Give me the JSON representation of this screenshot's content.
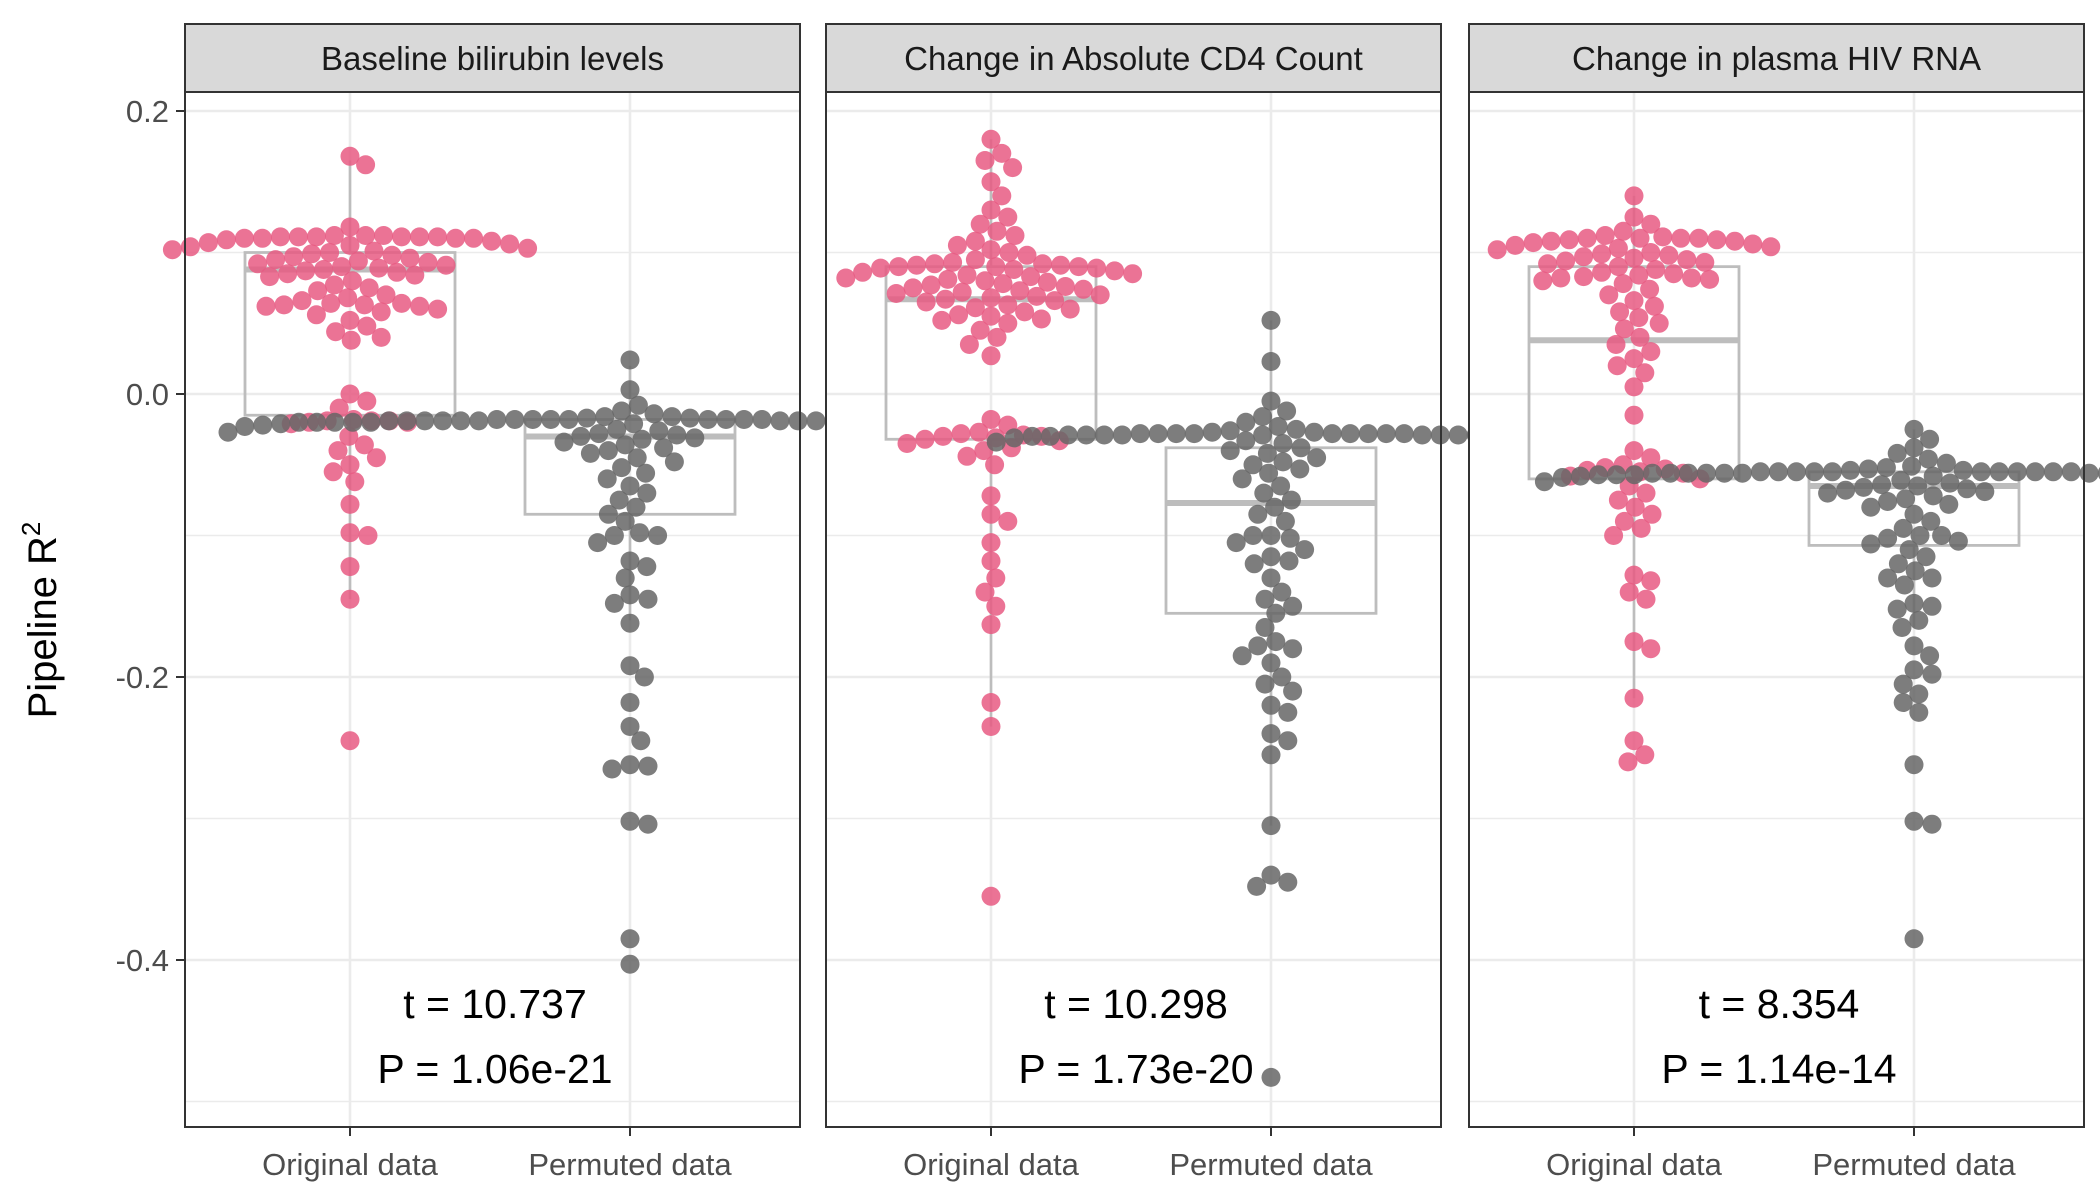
{
  "chart_data": {
    "type": "box-beeswarm",
    "ylabel": "Pipeline R",
    "ylabel_superscript": "2",
    "ylim": [
      -0.5,
      0.2
    ],
    "y_ticks": [
      0.2,
      0.0,
      -0.2,
      -0.4
    ],
    "y_tick_labels": [
      "0.2",
      "0.0",
      "-0.2",
      "-0.4"
    ],
    "categories": [
      "Original data",
      "Permuted data"
    ],
    "colors": {
      "Original data": "#E75A83",
      "Permuted data": "#666666",
      "box": "#BDBDBD",
      "strip_fill": "#D9D9D9",
      "grid": "#EBEBEB",
      "border": "#333333"
    },
    "panels": [
      {
        "title": "Baseline bilirubin levels",
        "annotation_t": "t = 10.737",
        "annotation_p": "P = 1.06e-21",
        "series": [
          {
            "name": "Original data",
            "box": {
              "q1": -0.015,
              "median": 0.088,
              "q3": 0.1,
              "whisker_low": -0.145,
              "whisker_high": 0.165
            },
            "values": [
              0.168,
              0.162,
              0.118,
              0.112,
              0.112,
              0.112,
              0.111,
              0.111,
              0.111,
              0.111,
              0.111,
              0.111,
              0.11,
              0.11,
              0.11,
              0.11,
              0.109,
              0.108,
              0.107,
              0.106,
              0.105,
              0.104,
              0.103,
              0.102,
              0.101,
              0.1,
              0.099,
              0.098,
              0.097,
              0.096,
              0.095,
              0.094,
              0.093,
              0.092,
              0.091,
              0.09,
              0.089,
              0.088,
              0.087,
              0.086,
              0.085,
              0.084,
              0.083,
              0.08,
              0.077,
              0.075,
              0.073,
              0.07,
              0.068,
              0.066,
              0.064,
              0.064,
              0.063,
              0.063,
              0.062,
              0.062,
              0.06,
              0.058,
              0.056,
              0.052,
              0.048,
              0.044,
              0.04,
              0.038,
              0.0,
              -0.005,
              -0.01,
              -0.018,
              -0.019,
              -0.019,
              -0.019,
              -0.02,
              -0.02,
              -0.021,
              -0.03,
              -0.036,
              -0.04,
              -0.045,
              -0.05,
              -0.055,
              -0.062,
              -0.078,
              -0.098,
              -0.1,
              -0.122,
              -0.145,
              -0.245
            ]
          },
          {
            "name": "Permuted data",
            "box": {
              "q1": -0.085,
              "median": -0.03,
              "q3": -0.018,
              "whisker_low": -0.16,
              "whisker_high": 0.02
            },
            "values": [
              0.024,
              0.003,
              -0.008,
              -0.012,
              -0.014,
              -0.016,
              -0.016,
              -0.017,
              -0.017,
              -0.018,
              -0.018,
              -0.018,
              -0.018,
              -0.018,
              -0.018,
              -0.018,
              -0.018,
              -0.018,
              -0.019,
              -0.019,
              -0.019,
              -0.019,
              -0.019,
              -0.019,
              -0.019,
              -0.019,
              -0.019,
              -0.019,
              -0.019,
              -0.019,
              -0.019,
              -0.02,
              -0.02,
              -0.02,
              -0.02,
              -0.02,
              -0.02,
              -0.02,
              -0.02,
              -0.02,
              -0.02,
              -0.021,
              -0.021,
              -0.021,
              -0.022,
              -0.022,
              -0.023,
              -0.024,
              -0.025,
              -0.026,
              -0.027,
              -0.028,
              -0.029,
              -0.03,
              -0.031,
              -0.032,
              -0.034,
              -0.036,
              -0.038,
              -0.04,
              -0.042,
              -0.045,
              -0.048,
              -0.052,
              -0.056,
              -0.06,
              -0.065,
              -0.07,
              -0.075,
              -0.08,
              -0.085,
              -0.09,
              -0.098,
              -0.1,
              -0.1,
              -0.105,
              -0.118,
              -0.122,
              -0.13,
              -0.142,
              -0.145,
              -0.148,
              -0.162,
              -0.192,
              -0.2,
              -0.218,
              -0.235,
              -0.245,
              -0.262,
              -0.263,
              -0.265,
              -0.302,
              -0.304,
              -0.385,
              -0.403
            ]
          }
        ]
      },
      {
        "title": "Change in Absolute CD4 Count",
        "annotation_t": "t = 10.298",
        "annotation_p": "P = 1.73e-20",
        "series": [
          {
            "name": "Original data",
            "box": {
              "q1": -0.032,
              "median": 0.067,
              "q3": 0.09,
              "whisker_low": -0.235,
              "whisker_high": 0.18
            },
            "values": [
              0.18,
              0.17,
              0.165,
              0.16,
              0.15,
              0.14,
              0.13,
              0.125,
              0.12,
              0.115,
              0.112,
              0.108,
              0.105,
              0.102,
              0.1,
              0.098,
              0.095,
              0.093,
              0.092,
              0.092,
              0.091,
              0.091,
              0.09,
              0.09,
              0.09,
              0.089,
              0.089,
              0.088,
              0.087,
              0.086,
              0.085,
              0.084,
              0.083,
              0.082,
              0.081,
              0.08,
              0.079,
              0.078,
              0.077,
              0.076,
              0.075,
              0.074,
              0.073,
              0.072,
              0.071,
              0.07,
              0.069,
              0.068,
              0.067,
              0.066,
              0.065,
              0.063,
              0.061,
              0.06,
              0.058,
              0.056,
              0.055,
              0.053,
              0.052,
              0.05,
              0.045,
              0.04,
              0.035,
              0.027,
              -0.018,
              -0.022,
              -0.027,
              -0.028,
              -0.029,
              -0.03,
              -0.03,
              -0.031,
              -0.032,
              -0.033,
              -0.035,
              -0.038,
              -0.04,
              -0.044,
              -0.05,
              -0.072,
              -0.085,
              -0.09,
              -0.105,
              -0.118,
              -0.13,
              -0.14,
              -0.15,
              -0.163,
              -0.218,
              -0.235,
              -0.355
            ]
          },
          {
            "name": "Permuted data",
            "box": {
              "q1": -0.155,
              "median": -0.077,
              "q3": -0.038,
              "whisker_low": -0.305,
              "whisker_high": 0.052
            },
            "values": [
              0.052,
              0.023,
              -0.005,
              -0.012,
              -0.016,
              -0.02,
              -0.023,
              -0.025,
              -0.026,
              -0.027,
              -0.027,
              -0.028,
              -0.028,
              -0.028,
              -0.028,
              -0.028,
              -0.028,
              -0.028,
              -0.028,
              -0.028,
              -0.029,
              -0.029,
              -0.029,
              -0.029,
              -0.029,
              -0.029,
              -0.029,
              -0.029,
              -0.029,
              -0.03,
              -0.03,
              -0.03,
              -0.03,
              -0.031,
              -0.032,
              -0.033,
              -0.034,
              -0.035,
              -0.036,
              -0.038,
              -0.04,
              -0.042,
              -0.045,
              -0.048,
              -0.05,
              -0.053,
              -0.056,
              -0.06,
              -0.065,
              -0.07,
              -0.075,
              -0.08,
              -0.085,
              -0.09,
              -0.1,
              -0.1,
              -0.102,
              -0.105,
              -0.11,
              -0.115,
              -0.118,
              -0.12,
              -0.13,
              -0.14,
              -0.145,
              -0.15,
              -0.155,
              -0.165,
              -0.175,
              -0.178,
              -0.18,
              -0.185,
              -0.19,
              -0.2,
              -0.205,
              -0.21,
              -0.22,
              -0.225,
              -0.24,
              -0.245,
              -0.255,
              -0.305,
              -0.34,
              -0.345,
              -0.348,
              -0.483
            ]
          }
        ]
      },
      {
        "title": "Change in plasma HIV RNA",
        "annotation_t": "t = 8.354",
        "annotation_p": "P = 1.14e-14",
        "series": [
          {
            "name": "Original data",
            "box": {
              "q1": -0.06,
              "median": 0.038,
              "q3": 0.09,
              "whisker_low": -0.215,
              "whisker_high": 0.14
            },
            "values": [
              0.14,
              0.125,
              0.12,
              0.115,
              0.112,
              0.111,
              0.11,
              0.11,
              0.11,
              0.11,
              0.109,
              0.109,
              0.108,
              0.108,
              0.107,
              0.106,
              0.105,
              0.104,
              0.103,
              0.102,
              0.1,
              0.099,
              0.098,
              0.097,
              0.096,
              0.095,
              0.094,
              0.093,
              0.092,
              0.09,
              0.088,
              0.086,
              0.085,
              0.084,
              0.083,
              0.082,
              0.082,
              0.081,
              0.08,
              0.078,
              0.074,
              0.07,
              0.066,
              0.062,
              0.058,
              0.054,
              0.05,
              0.046,
              0.04,
              0.035,
              0.03,
              0.025,
              0.02,
              0.015,
              0.005,
              -0.015,
              -0.04,
              -0.045,
              -0.05,
              -0.052,
              -0.053,
              -0.054,
              -0.055,
              -0.056,
              -0.058,
              -0.06,
              -0.065,
              -0.07,
              -0.075,
              -0.08,
              -0.085,
              -0.09,
              -0.095,
              -0.1,
              -0.128,
              -0.132,
              -0.14,
              -0.145,
              -0.175,
              -0.18,
              -0.215,
              -0.245,
              -0.255,
              -0.26
            ]
          },
          {
            "name": "Permuted data",
            "box": {
              "q1": -0.107,
              "median": -0.065,
              "q3": -0.055,
              "whisker_low": -0.165,
              "whisker_high": -0.025
            },
            "values": [
              -0.025,
              -0.032,
              -0.038,
              -0.042,
              -0.046,
              -0.049,
              -0.051,
              -0.052,
              -0.053,
              -0.054,
              -0.054,
              -0.055,
              -0.055,
              -0.055,
              -0.055,
              -0.055,
              -0.055,
              -0.055,
              -0.055,
              -0.055,
              -0.055,
              -0.055,
              -0.056,
              -0.056,
              -0.056,
              -0.056,
              -0.056,
              -0.056,
              -0.056,
              -0.056,
              -0.056,
              -0.056,
              -0.056,
              -0.057,
              -0.057,
              -0.057,
              -0.057,
              -0.057,
              -0.057,
              -0.057,
              -0.058,
              -0.058,
              -0.058,
              -0.059,
              -0.06,
              -0.061,
              -0.062,
              -0.063,
              -0.064,
              -0.065,
              -0.066,
              -0.067,
              -0.068,
              -0.069,
              -0.07,
              -0.072,
              -0.074,
              -0.076,
              -0.078,
              -0.08,
              -0.085,
              -0.09,
              -0.095,
              -0.1,
              -0.1,
              -0.102,
              -0.104,
              -0.106,
              -0.11,
              -0.115,
              -0.12,
              -0.125,
              -0.13,
              -0.13,
              -0.135,
              -0.148,
              -0.15,
              -0.152,
              -0.16,
              -0.165,
              -0.178,
              -0.185,
              -0.195,
              -0.198,
              -0.205,
              -0.212,
              -0.218,
              -0.225,
              -0.262,
              -0.302,
              -0.304,
              -0.385
            ]
          }
        ]
      }
    ]
  }
}
